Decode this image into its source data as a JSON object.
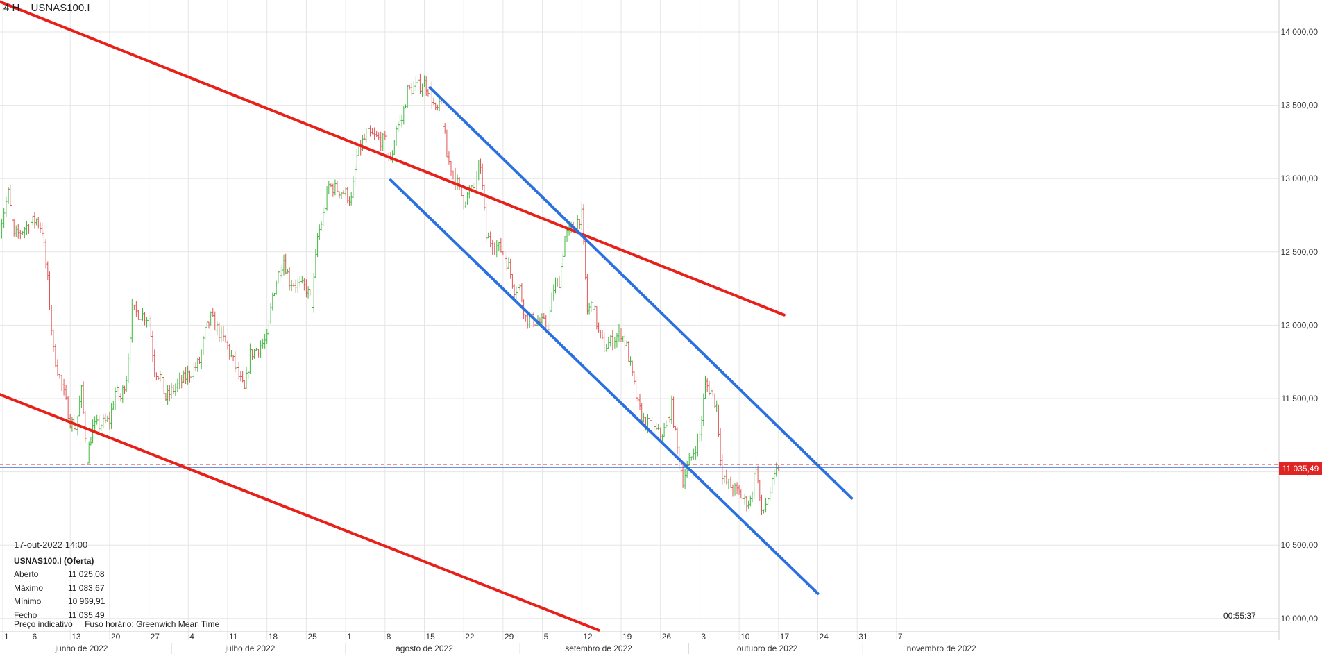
{
  "header": {
    "timeframe": "4 H",
    "symbol": "USNAS100.I"
  },
  "info_panel": {
    "datetime": "17-out-2022 14:00",
    "instrument": "USNAS100.I (Oferta)",
    "rows": [
      {
        "label": "Aberto",
        "value": "11 025,08"
      },
      {
        "label": "Máximo",
        "value": "11 083,67"
      },
      {
        "label": "Mínimo",
        "value": "10 969,91"
      },
      {
        "label": "Fecho",
        "value": "11 035,49"
      }
    ]
  },
  "footer": {
    "price_type": "Preço indicativo",
    "timezone": "Fuso horário: Greenwich Mean Time"
  },
  "countdown": "00:55:37",
  "current_price_label": "11 035,49",
  "colors": {
    "up": "#3fb83f",
    "down": "#e05555",
    "red_line": "#e8201a",
    "blue_line": "#2a70e0",
    "grid": "#e6e6e6",
    "price_line": "#e02424",
    "horizontal_line": "#2a70e0"
  },
  "chart_data": {
    "type": "candlestick",
    "symbol": "USNAS100.I",
    "timeframe": "4 H",
    "y_range": [
      9950,
      14250
    ],
    "y_ticks": [
      {
        "value": 14000,
        "label": "14 000,00"
      },
      {
        "value": 13500,
        "label": "13 500,00"
      },
      {
        "value": 13000,
        "label": "13 000,00"
      },
      {
        "value": 12500,
        "label": "12 500,00"
      },
      {
        "value": 12000,
        "label": "12 000,00"
      },
      {
        "value": 11500,
        "label": "11 500,00"
      },
      {
        "value": 11000,
        "label": "11 000,00"
      },
      {
        "value": 10500,
        "label": "10 500,00"
      },
      {
        "value": 10000,
        "label": "10 000,00"
      }
    ],
    "x_days": [
      {
        "label": "1",
        "date": "2022-06-01"
      },
      {
        "label": "6",
        "date": "2022-06-06"
      },
      {
        "label": "13",
        "date": "2022-06-13"
      },
      {
        "label": "20",
        "date": "2022-06-20"
      },
      {
        "label": "27",
        "date": "2022-06-27"
      },
      {
        "label": "4",
        "date": "2022-07-04"
      },
      {
        "label": "11",
        "date": "2022-07-11"
      },
      {
        "label": "18",
        "date": "2022-07-18"
      },
      {
        "label": "25",
        "date": "2022-07-25"
      },
      {
        "label": "1",
        "date": "2022-08-01"
      },
      {
        "label": "8",
        "date": "2022-08-08"
      },
      {
        "label": "15",
        "date": "2022-08-15"
      },
      {
        "label": "22",
        "date": "2022-08-22"
      },
      {
        "label": "29",
        "date": "2022-08-29"
      },
      {
        "label": "5",
        "date": "2022-09-05"
      },
      {
        "label": "12",
        "date": "2022-09-12"
      },
      {
        "label": "19",
        "date": "2022-09-19"
      },
      {
        "label": "26",
        "date": "2022-09-26"
      },
      {
        "label": "3",
        "date": "2022-10-03"
      },
      {
        "label": "10",
        "date": "2022-10-10"
      },
      {
        "label": "17",
        "date": "2022-10-17"
      },
      {
        "label": "24",
        "date": "2022-10-24"
      },
      {
        "label": "31",
        "date": "2022-10-31"
      },
      {
        "label": "7",
        "date": "2022-11-07"
      }
    ],
    "x_months": [
      {
        "label": "junho de 2022",
        "date": "2022-06-15"
      },
      {
        "label": "julho de 2022",
        "date": "2022-07-15"
      },
      {
        "label": "agosto de 2022",
        "date": "2022-08-15"
      },
      {
        "label": "setembro de 2022",
        "date": "2022-09-15"
      },
      {
        "label": "outubro de 2022",
        "date": "2022-10-15"
      },
      {
        "label": "novembro de 2022",
        "date": "2022-11-15"
      }
    ],
    "x_month_starts": [
      "2022-07-01",
      "2022-08-01",
      "2022-09-01",
      "2022-10-01",
      "2022-11-01"
    ],
    "daily_path": [
      {
        "date": "2022-05-31",
        "close": 12600
      },
      {
        "date": "2022-06-02",
        "close": 12900
      },
      {
        "date": "2022-06-03",
        "close": 12600
      },
      {
        "date": "2022-06-06",
        "close": 12700
      },
      {
        "date": "2022-06-07",
        "close": 12720
      },
      {
        "date": "2022-06-08",
        "close": 12650
      },
      {
        "date": "2022-06-09",
        "close": 12300
      },
      {
        "date": "2022-06-10",
        "close": 11820
      },
      {
        "date": "2022-06-13",
        "close": 11350
      },
      {
        "date": "2022-06-14",
        "close": 11300
      },
      {
        "date": "2022-06-15",
        "close": 11550
      },
      {
        "date": "2022-06-16",
        "close": 11100
      },
      {
        "date": "2022-06-17",
        "close": 11300
      },
      {
        "date": "2022-06-20",
        "close": 11350
      },
      {
        "date": "2022-06-21",
        "close": 11550
      },
      {
        "date": "2022-06-22",
        "close": 11500
      },
      {
        "date": "2022-06-23",
        "close": 11650
      },
      {
        "date": "2022-06-24",
        "close": 12100
      },
      {
        "date": "2022-06-27",
        "close": 12050
      },
      {
        "date": "2022-06-28",
        "close": 11700
      },
      {
        "date": "2022-06-29",
        "close": 11650
      },
      {
        "date": "2022-06-30",
        "close": 11500
      },
      {
        "date": "2022-07-01",
        "close": 11550
      },
      {
        "date": "2022-07-05",
        "close": 11700
      },
      {
        "date": "2022-07-06",
        "close": 11750
      },
      {
        "date": "2022-07-07",
        "close": 11950
      },
      {
        "date": "2022-07-08",
        "close": 12050
      },
      {
        "date": "2022-07-11",
        "close": 11850
      },
      {
        "date": "2022-07-12",
        "close": 11750
      },
      {
        "date": "2022-07-13",
        "close": 11650
      },
      {
        "date": "2022-07-14",
        "close": 11550
      },
      {
        "date": "2022-07-15",
        "close": 11800
      },
      {
        "date": "2022-07-18",
        "close": 11900
      },
      {
        "date": "2022-07-19",
        "close": 12200
      },
      {
        "date": "2022-07-20",
        "close": 12350
      },
      {
        "date": "2022-07-21",
        "close": 12450
      },
      {
        "date": "2022-07-22",
        "close": 12300
      },
      {
        "date": "2022-07-25",
        "close": 12250
      },
      {
        "date": "2022-07-26",
        "close": 12150
      },
      {
        "date": "2022-07-27",
        "close": 12600
      },
      {
        "date": "2022-07-28",
        "close": 12750
      },
      {
        "date": "2022-07-29",
        "close": 12950
      },
      {
        "date": "2022-08-01",
        "close": 12900
      },
      {
        "date": "2022-08-02",
        "close": 12850
      },
      {
        "date": "2022-08-03",
        "close": 13150
      },
      {
        "date": "2022-08-04",
        "close": 13250
      },
      {
        "date": "2022-08-05",
        "close": 13300
      },
      {
        "date": "2022-08-08",
        "close": 13250
      },
      {
        "date": "2022-08-09",
        "close": 13100
      },
      {
        "date": "2022-08-10",
        "close": 13350
      },
      {
        "date": "2022-08-11",
        "close": 13400
      },
      {
        "date": "2022-08-12",
        "close": 13600
      },
      {
        "date": "2022-08-15",
        "close": 13650
      },
      {
        "date": "2022-08-16",
        "close": 13600
      },
      {
        "date": "2022-08-17",
        "close": 13450
      },
      {
        "date": "2022-08-18",
        "close": 13500
      },
      {
        "date": "2022-08-19",
        "close": 13150
      },
      {
        "date": "2022-08-22",
        "close": 12850
      },
      {
        "date": "2022-08-23",
        "close": 12900
      },
      {
        "date": "2022-08-24",
        "close": 12950
      },
      {
        "date": "2022-08-25",
        "close": 13100
      },
      {
        "date": "2022-08-26",
        "close": 12600
      },
      {
        "date": "2022-08-29",
        "close": 12500
      },
      {
        "date": "2022-08-30",
        "close": 12400
      },
      {
        "date": "2022-08-31",
        "close": 12250
      },
      {
        "date": "2022-09-01",
        "close": 12250
      },
      {
        "date": "2022-09-02",
        "close": 12050
      },
      {
        "date": "2022-09-06",
        "close": 12000
      },
      {
        "date": "2022-09-07",
        "close": 12250
      },
      {
        "date": "2022-09-08",
        "close": 12300
      },
      {
        "date": "2022-09-09",
        "close": 12600
      },
      {
        "date": "2022-09-12",
        "close": 12750
      },
      {
        "date": "2022-09-13",
        "close": 12100
      },
      {
        "date": "2022-09-14",
        "close": 12150
      },
      {
        "date": "2022-09-15",
        "close": 11950
      },
      {
        "date": "2022-09-16",
        "close": 11850
      },
      {
        "date": "2022-09-19",
        "close": 11950
      },
      {
        "date": "2022-09-20",
        "close": 11850
      },
      {
        "date": "2022-09-21",
        "close": 11650
      },
      {
        "date": "2022-09-22",
        "close": 11450
      },
      {
        "date": "2022-09-23",
        "close": 11350
      },
      {
        "date": "2022-09-26",
        "close": 11250
      },
      {
        "date": "2022-09-27",
        "close": 11300
      },
      {
        "date": "2022-09-28",
        "close": 11450
      },
      {
        "date": "2022-09-29",
        "close": 11150
      },
      {
        "date": "2022-09-30",
        "close": 10950
      },
      {
        "date": "2022-10-03",
        "close": 11250
      },
      {
        "date": "2022-10-04",
        "close": 11600
      },
      {
        "date": "2022-10-05",
        "close": 11550
      },
      {
        "date": "2022-10-06",
        "close": 11450
      },
      {
        "date": "2022-10-07",
        "close": 10950
      },
      {
        "date": "2022-10-10",
        "close": 10850
      },
      {
        "date": "2022-10-11",
        "close": 10800
      },
      {
        "date": "2022-10-12",
        "close": 10800
      },
      {
        "date": "2022-10-13",
        "close": 11050
      },
      {
        "date": "2022-10-14",
        "close": 10700
      },
      {
        "date": "2022-10-17",
        "close": 11035
      }
    ],
    "horizontal_lines": [
      {
        "kind": "solid",
        "value": 11030,
        "color": "#2a70e0"
      },
      {
        "kind": "dashed",
        "value": 11050,
        "color": "#e02424"
      }
    ],
    "trend_lines": [
      {
        "color": "#e8201a",
        "from": {
          "date": "2022-05-26",
          "value": 14290
        },
        "to": {
          "date": "2022-10-18",
          "value": 12070
        }
      },
      {
        "color": "#e8201a",
        "from": {
          "date": "2022-05-30",
          "value": 11550
        },
        "to": {
          "date": "2022-09-15",
          "value": 9920
        }
      },
      {
        "color": "#2a70e0",
        "from": {
          "date": "2022-08-16",
          "value": 13620
        },
        "to": {
          "date": "2022-10-30",
          "value": 10820
        }
      },
      {
        "color": "#2a70e0",
        "from": {
          "date": "2022-08-09",
          "value": 12990
        },
        "to": {
          "date": "2022-10-24",
          "value": 10170
        }
      }
    ]
  }
}
